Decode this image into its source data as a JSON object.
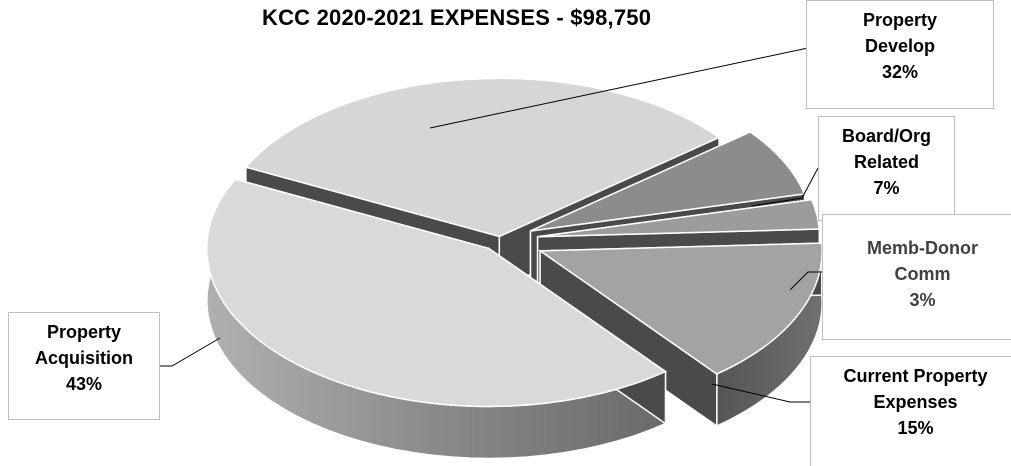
{
  "chart_data": {
    "type": "pie",
    "title": "KCC 2020-2021 EXPENSES - $98,750",
    "slices": [
      {
        "category": "Property Develop",
        "label_lines": [
          "Property",
          "Develop"
        ],
        "percent_label": "32%",
        "value": 32
      },
      {
        "category": "Board/Org Related",
        "label_lines": [
          "Board/Org",
          "Related"
        ],
        "percent_label": "7%",
        "value": 7
      },
      {
        "category": "Memb-Donor Comm",
        "label_lines": [
          "Memb-Donor",
          "Comm"
        ],
        "percent_label": "3%",
        "value": 3
      },
      {
        "category": "Current Property Expenses",
        "label_lines": [
          "Current Property",
          "Expenses"
        ],
        "percent_label": "15%",
        "value": 15
      },
      {
        "category": "Property Acquisition",
        "label_lines": [
          "Property",
          "Acquisition"
        ],
        "percent_label": "43%",
        "value": 43
      }
    ],
    "style": "3d-exploded",
    "legend": "none",
    "colors": {
      "light": "#d6d6d6",
      "mid": "#a6a6a6",
      "dark": "#7f7f7f",
      "side_dark": "#4a4a4a"
    }
  }
}
